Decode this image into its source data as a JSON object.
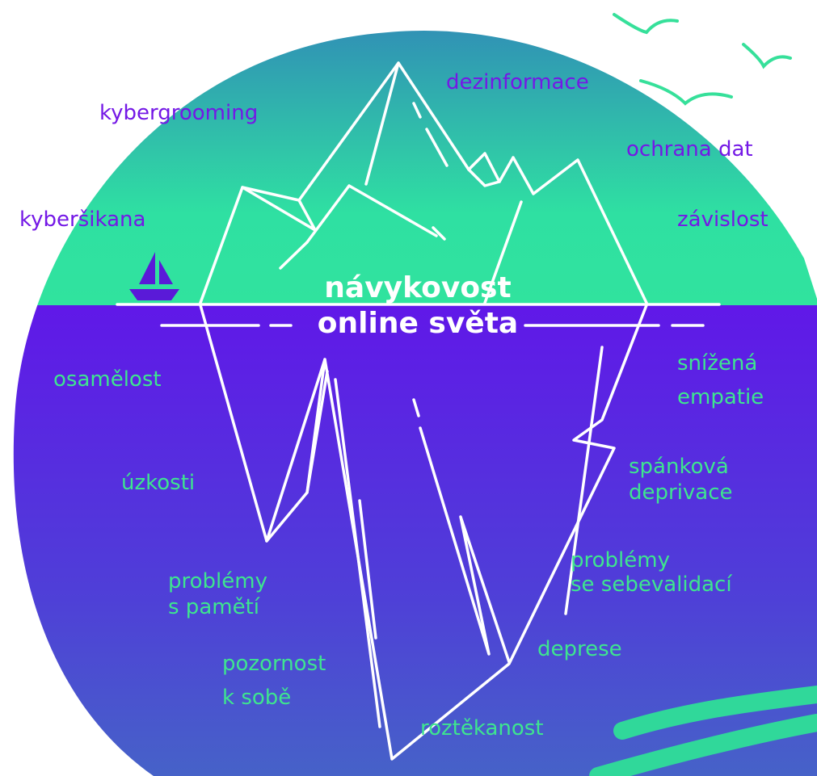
{
  "center_title": [
    "návykovost",
    "online světa"
  ],
  "above_water": [
    {
      "lines": [
        "kybergrooming"
      ]
    },
    {
      "lines": [
        "dezinformace"
      ]
    },
    {
      "lines": [
        "ochrana dat"
      ]
    },
    {
      "lines": [
        "kyberšikana"
      ]
    },
    {
      "lines": [
        "závislost"
      ]
    }
  ],
  "below_water": [
    {
      "lines": [
        "osamělost"
      ]
    },
    {
      "lines": [
        "snížená",
        "empatie"
      ]
    },
    {
      "lines": [
        "úzkosti"
      ]
    },
    {
      "lines": [
        "spánková",
        "deprivace"
      ]
    },
    {
      "lines": [
        "problémy",
        "s pamětí"
      ]
    },
    {
      "lines": [
        "problémy",
        "se sebevalidací"
      ]
    },
    {
      "lines": [
        "pozornost",
        "k sobě"
      ]
    },
    {
      "lines": [
        "deprese"
      ]
    },
    {
      "lines": [
        "roztěkanost"
      ]
    }
  ]
}
